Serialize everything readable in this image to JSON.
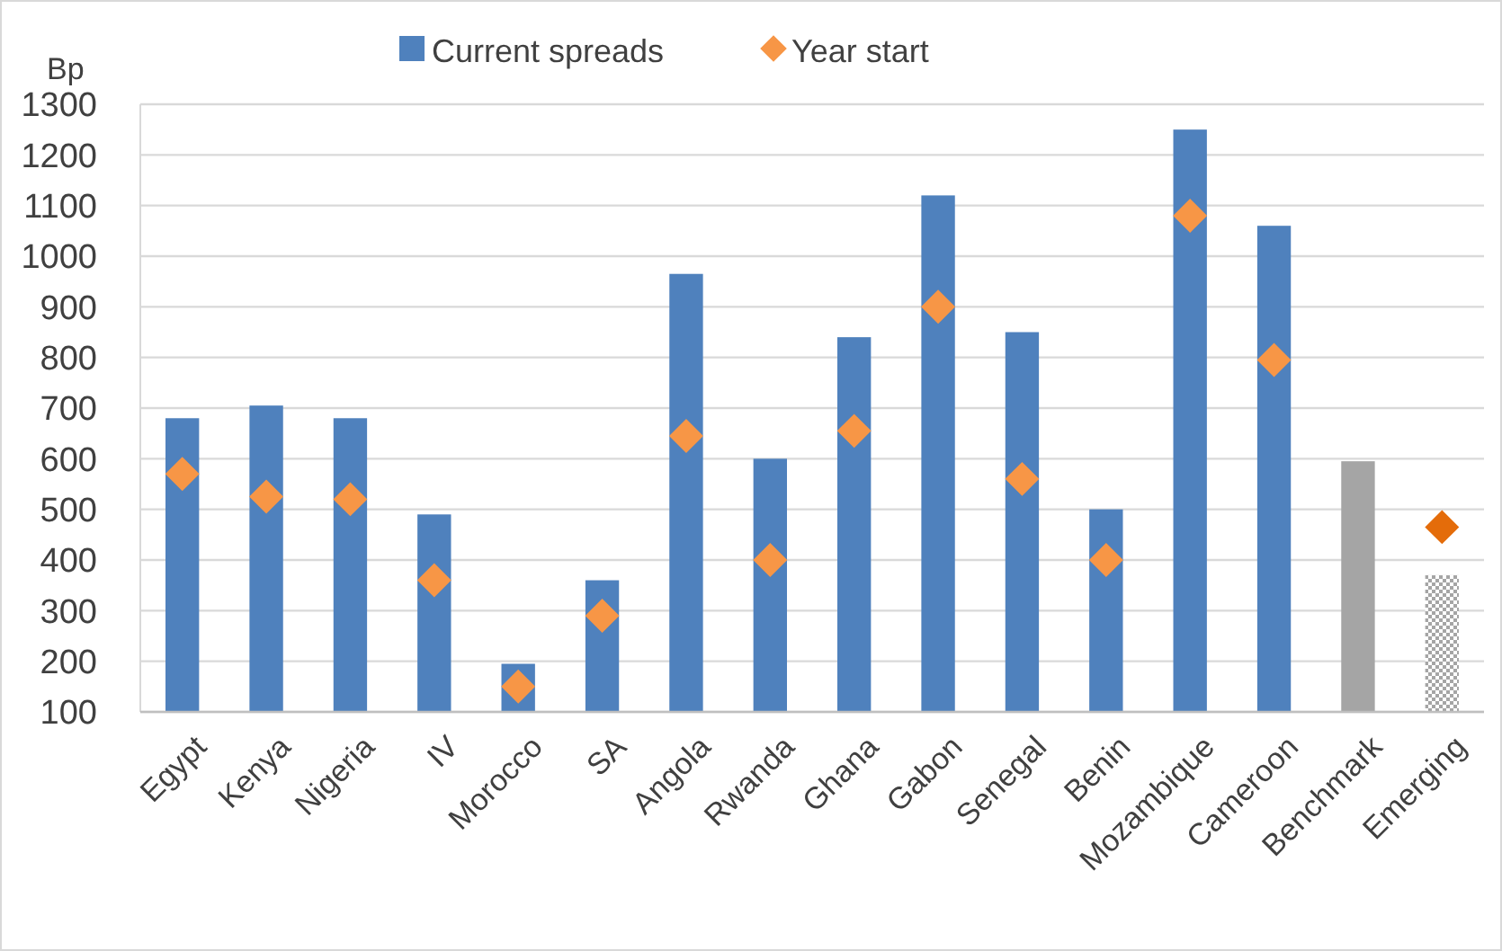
{
  "chart_data": {
    "type": "bar",
    "ylabel": "Bp",
    "categories": [
      "Egypt",
      "Kenya",
      "Nigeria",
      "IV",
      "Morocco",
      "SA",
      "Angola",
      "Rwanda",
      "Ghana",
      "Gabon",
      "Senegal",
      "Benin",
      "Mozambique",
      "Cameroon",
      "Benchmark",
      "Emerging"
    ],
    "series": [
      {
        "name": "Current spreads",
        "color": "#4f81bd",
        "colors": [
          "#4f81bd",
          "#4f81bd",
          "#4f81bd",
          "#4f81bd",
          "#4f81bd",
          "#4f81bd",
          "#4f81bd",
          "#4f81bd",
          "#4f81bd",
          "#4f81bd",
          "#4f81bd",
          "#4f81bd",
          "#4f81bd",
          "#4f81bd",
          "#a5a5a5",
          "#a5a5a5"
        ],
        "values": [
          680,
          705,
          680,
          490,
          195,
          360,
          965,
          600,
          840,
          1120,
          850,
          500,
          1250,
          1060,
          595,
          370
        ]
      },
      {
        "name": "Year start",
        "type": "scatter",
        "marker": "diamond",
        "color": "#f79646",
        "colors": [
          "#f79646",
          "#f79646",
          "#f79646",
          "#f79646",
          "#f79646",
          "#f79646",
          "#f79646",
          "#f79646",
          "#f79646",
          "#f79646",
          "#f79646",
          "#f79646",
          "#f79646",
          "#f79646",
          "#f79646",
          "#e46c0a"
        ],
        "values": [
          570,
          525,
          520,
          360,
          150,
          290,
          645,
          400,
          655,
          900,
          560,
          400,
          1080,
          795,
          null,
          465
        ]
      }
    ],
    "ylim": [
      100,
      1300
    ],
    "yticks": [
      100,
      200,
      300,
      400,
      500,
      600,
      700,
      800,
      900,
      1000,
      1100,
      1200,
      1300
    ],
    "grid": "y",
    "legend": "top"
  }
}
